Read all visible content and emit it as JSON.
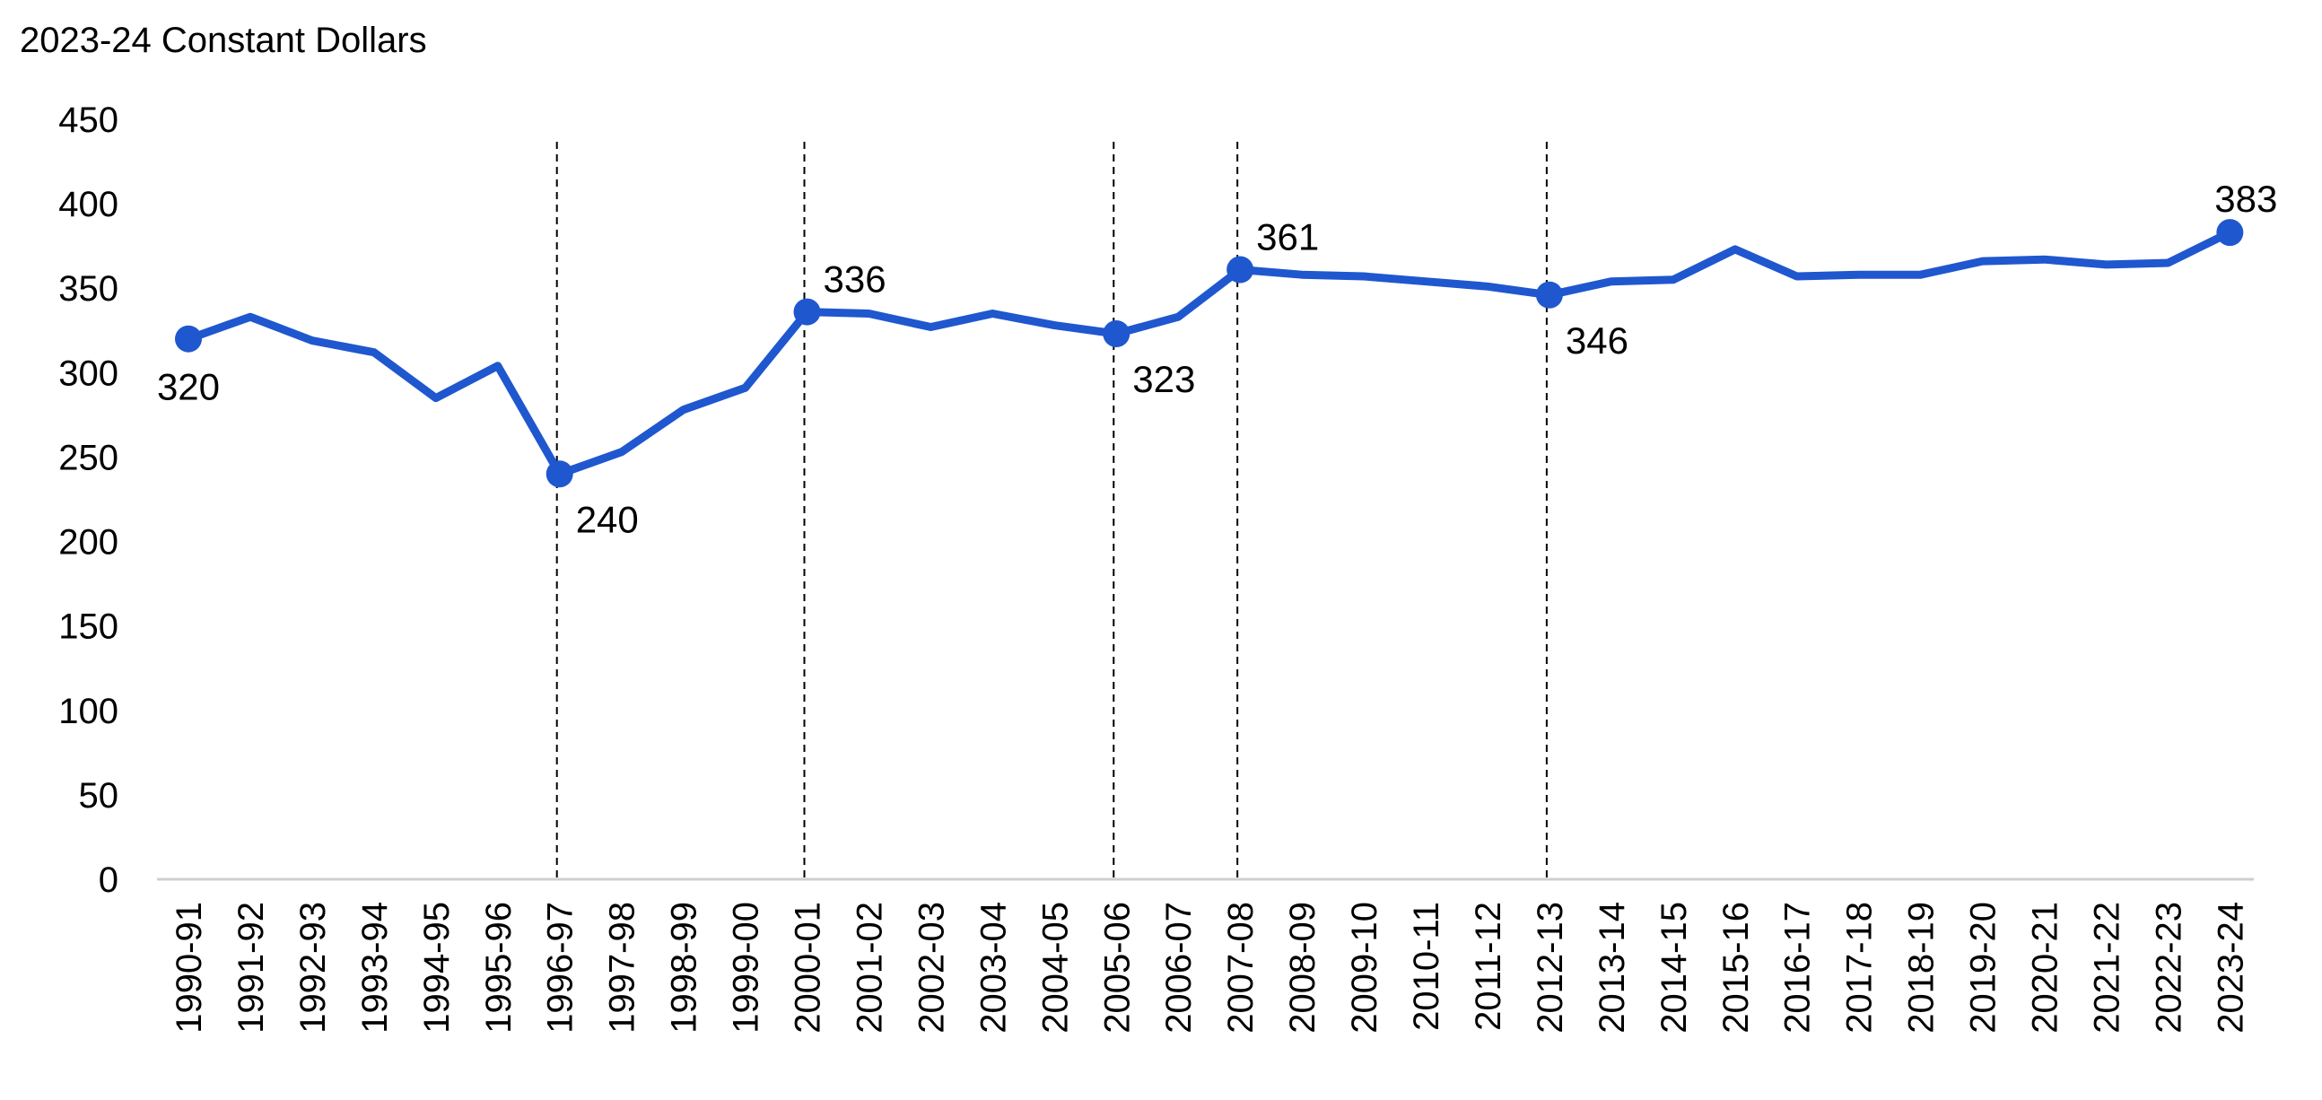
{
  "chart_data": {
    "type": "line",
    "title": "",
    "unit_label": "2023-24 Constant Dollars",
    "xlabel": "",
    "ylabel": "",
    "ylim": [
      0,
      450
    ],
    "yticks": [
      0,
      50,
      100,
      150,
      200,
      250,
      300,
      350,
      400,
      450
    ],
    "grid": false,
    "legend": "none",
    "colors": {
      "series": "#1f57cf",
      "axis": "#cfcfcf",
      "reference": "#000000"
    },
    "categories": [
      "1990-91",
      "1991-92",
      "1992-93",
      "1993-94",
      "1994-95",
      "1995-96",
      "1996-97",
      "1997-98",
      "1998-99",
      "1999-00",
      "2000-01",
      "2001-02",
      "2002-03",
      "2003-04",
      "2004-05",
      "2005-06",
      "2006-07",
      "2007-08",
      "2008-09",
      "2009-10",
      "2010-11",
      "2011-12",
      "2012-13",
      "2013-14",
      "2014-15",
      "2015-16",
      "2016-17",
      "2017-18",
      "2018-19",
      "2019-20",
      "2020-21",
      "2021-22",
      "2022-23",
      "2023-24"
    ],
    "series": [
      {
        "values": [
          320,
          333,
          319,
          312,
          285,
          304,
          240,
          253,
          278,
          291,
          336,
          335,
          327,
          335,
          328,
          323,
          333,
          361,
          358,
          357,
          354,
          351,
          346,
          354,
          355,
          373,
          357,
          358,
          358,
          366,
          367,
          364,
          365,
          383
        ]
      }
    ],
    "reference_lines": [
      "1996-97",
      "2000-01",
      "2005-06",
      "2007-08",
      "2012-13"
    ],
    "data_labels": [
      {
        "category": "1990-91",
        "text": "320",
        "position": "below"
      },
      {
        "category": "1996-97",
        "text": "240",
        "position": "below-right"
      },
      {
        "category": "2000-01",
        "text": "336",
        "position": "above-right"
      },
      {
        "category": "2005-06",
        "text": "323",
        "position": "below-right"
      },
      {
        "category": "2007-08",
        "text": "361",
        "position": "above-right"
      },
      {
        "category": "2012-13",
        "text": "346",
        "position": "below-right"
      },
      {
        "category": "2023-24",
        "text": "383",
        "position": "above"
      }
    ]
  }
}
